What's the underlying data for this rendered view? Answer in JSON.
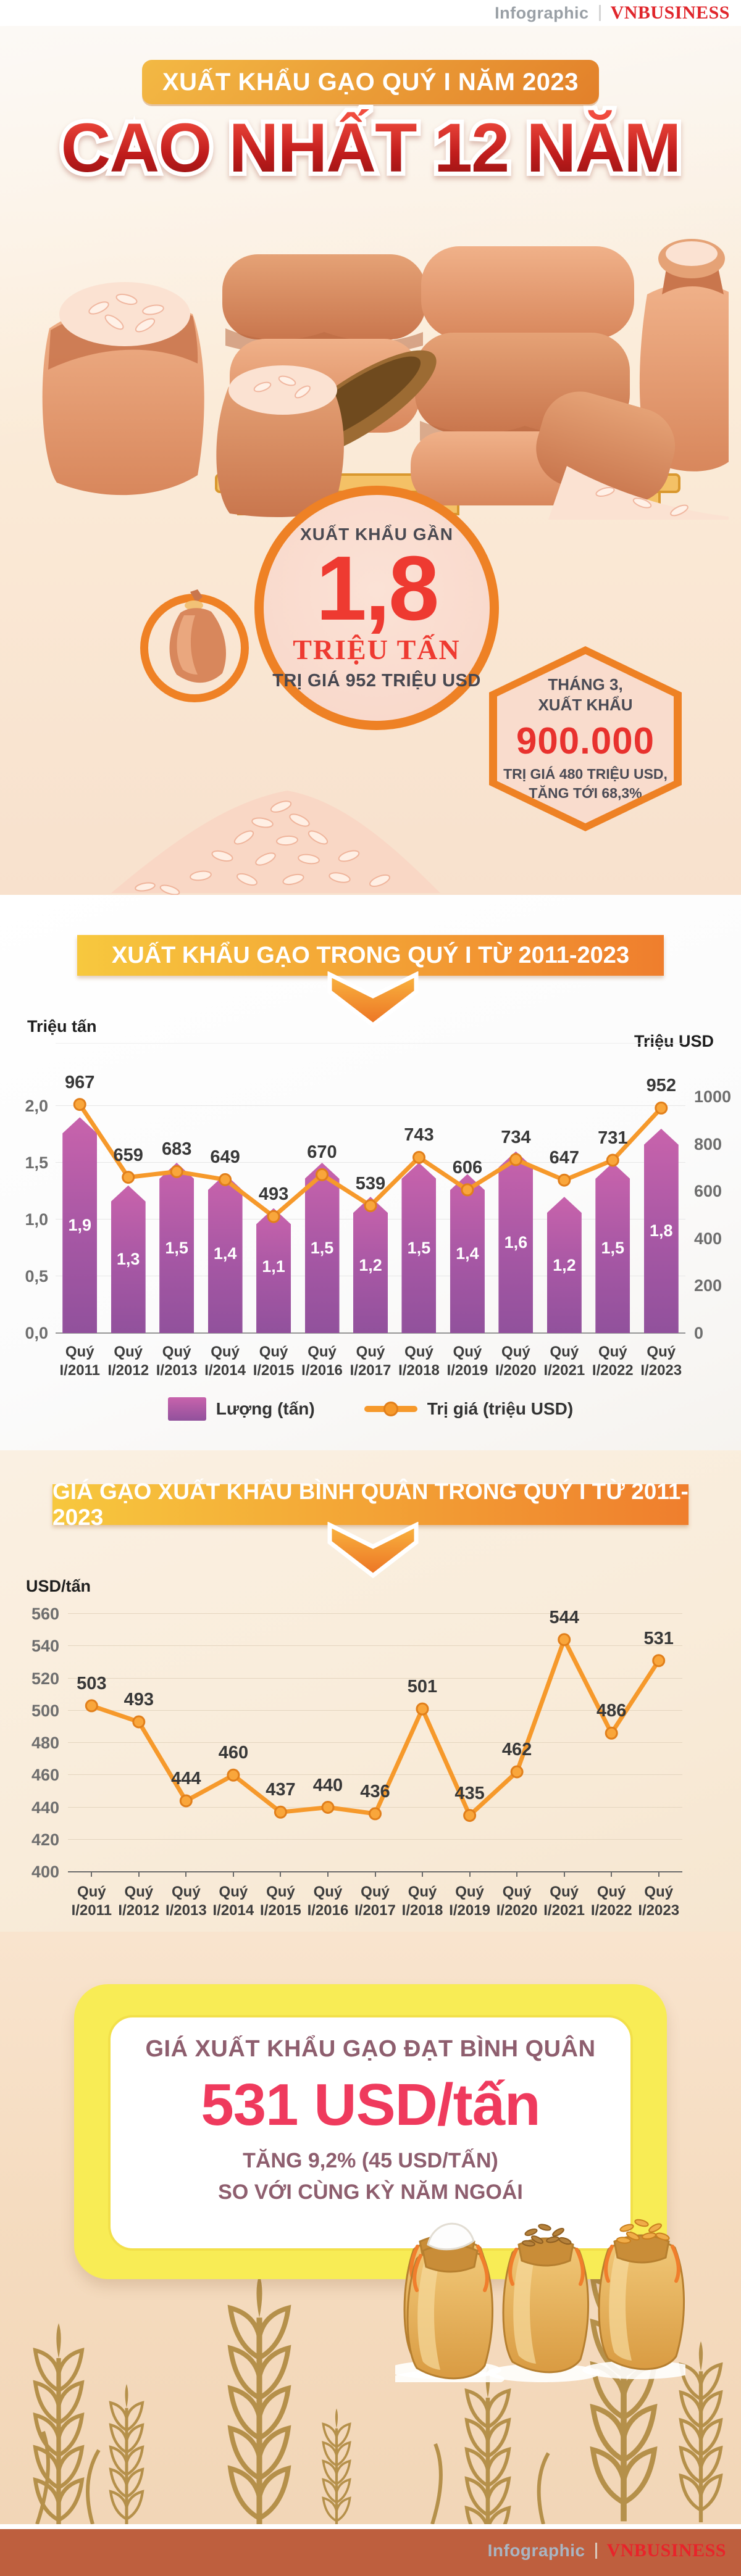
{
  "header": {
    "brand_left": "Infographic",
    "brand_right": "VNBUSINESS"
  },
  "hero": {
    "banner": "XUẤT KHẨU GẠO QUÝ I NĂM 2023",
    "big_title": "CAO NHẤT 12 NĂM",
    "circle": {
      "caption": "XUẤT KHẨU GẦN",
      "value": "1,8",
      "unit": "TRIỆU TẤN",
      "subtitle": "TRỊ GIÁ 952 TRIỆU USD"
    },
    "hexagon": {
      "line1": "THÁNG 3,",
      "line2": "XUẤT KHẨU",
      "value": "900.000",
      "line3": "TRỊ GIÁ 480 TRIỆU USD,",
      "line4": "TĂNG TỚI 68,3%"
    }
  },
  "summary": {
    "title": "GIÁ XUẤT KHẨU GẠO ĐẠT BÌNH QUÂN",
    "value": "531 USD/tấn",
    "line1": "TĂNG 9,2% (45 USD/TẤN)",
    "line2": "SO VỚI CÙNG KỲ NĂM NGOÁI"
  },
  "footer": {
    "brand_left": "Infographic",
    "brand_right": "VNBUSINESS"
  },
  "chart_data": [
    {
      "type": "bar+line",
      "title": "XUẤT KHẨU GẠO TRONG QUÝ I TỪ 2011-2023",
      "categories": [
        "Quý I/2011",
        "Quý I/2012",
        "Quý I/2013",
        "Quý I/2014",
        "Quý I/2015",
        "Quý I/2016",
        "Quý I/2017",
        "Quý I/2018",
        "Quý I/2019",
        "Quý I/2020",
        "Quý I/2021",
        "Quý I/2022",
        "Quý I/2023"
      ],
      "series": [
        {
          "name": "Lượng (tấn)",
          "type": "bar",
          "axis": "left",
          "values": [
            1.9,
            1.3,
            1.5,
            1.4,
            1.1,
            1.5,
            1.2,
            1.5,
            1.4,
            1.6,
            1.2,
            1.5,
            1.8
          ],
          "labels": [
            "1,9",
            "1,3",
            "1,5",
            "1,4",
            "1,1",
            "1,5",
            "1,2",
            "1,5",
            "1,4",
            "1,6",
            "1,2",
            "1,5",
            "1,8"
          ]
        },
        {
          "name": "Trị giá (triệu USD)",
          "type": "line",
          "axis": "right",
          "values": [
            967,
            659,
            683,
            649,
            493,
            670,
            539,
            743,
            606,
            734,
            647,
            731,
            952
          ]
        }
      ],
      "left_axis": {
        "label": "Triệu tấn",
        "ticks": [
          "2,0",
          "1,5",
          "1,0",
          "0,5",
          "0,0"
        ],
        "max": 2.0
      },
      "right_axis": {
        "label": "Triệu USD",
        "ticks": [
          "1000",
          "800",
          "600",
          "400",
          "200",
          "0"
        ],
        "max": 1000
      },
      "legend_position": "bottom",
      "grid": true,
      "bar_color_top": "#c863ac",
      "bar_color_bottom": "#91519c",
      "line_color": "#f6992b"
    },
    {
      "type": "line",
      "title": "GIÁ GẠO XUẤT KHẨU BÌNH QUÂN TRONG QUÝ I TỪ 2011-2023",
      "ylabel": "USD/tấn",
      "categories": [
        "Quý I/2011",
        "Quý I/2012",
        "Quý I/2013",
        "Quý I/2014",
        "Quý I/2015",
        "Quý I/2016",
        "Quý I/2017",
        "Quý I/2018",
        "Quý I/2019",
        "Quý I/2020",
        "Quý I/2021",
        "Quý I/2022",
        "Quý I/2023"
      ],
      "values": [
        503,
        493,
        444,
        460,
        437,
        440,
        436,
        501,
        435,
        462,
        544,
        486,
        531
      ],
      "yticks": [
        "560",
        "540",
        "520",
        "500",
        "480",
        "460",
        "440",
        "420",
        "400"
      ],
      "ymin": 400,
      "ymax": 560,
      "grid": true,
      "line_color": "#f6992b"
    }
  ]
}
